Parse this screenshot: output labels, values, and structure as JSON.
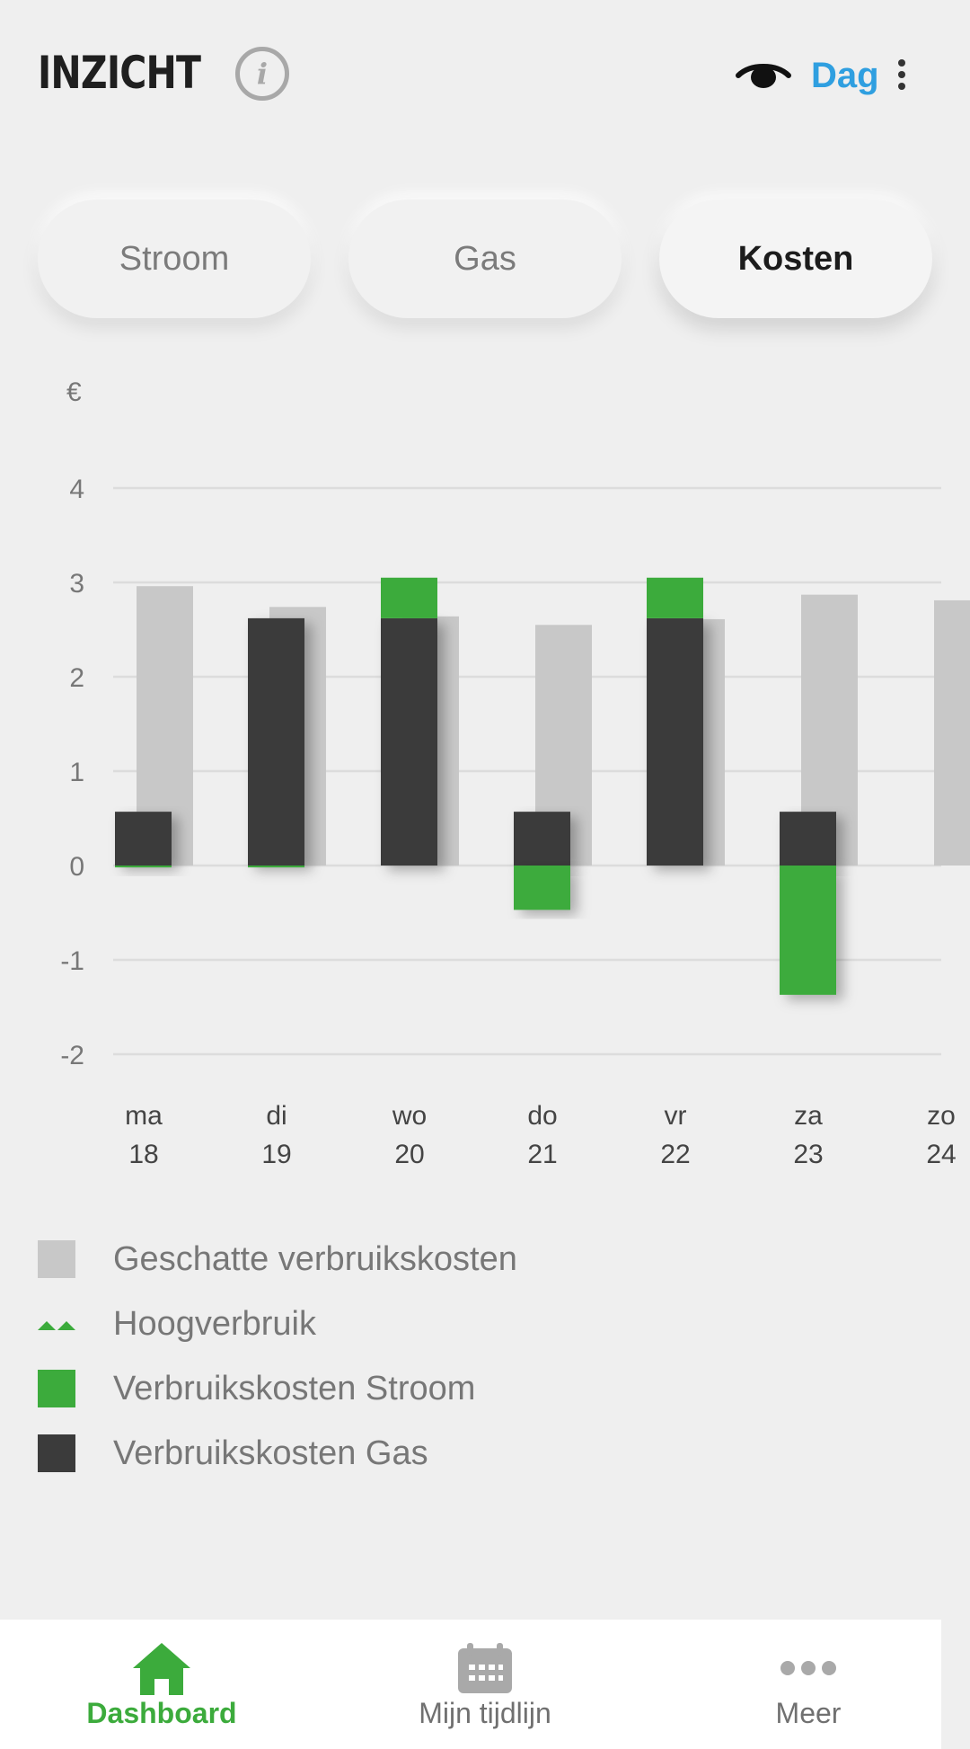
{
  "header": {
    "title": "INZICHT",
    "info_icon": "info-icon",
    "visibility_icon": "eye-icon",
    "period": "Dag",
    "menu_icon": "kebab-menu-icon"
  },
  "tabs": [
    {
      "label": "Stroom",
      "active": false
    },
    {
      "label": "Gas",
      "active": false
    },
    {
      "label": "Kosten",
      "active": true
    }
  ],
  "chart_data": {
    "type": "bar",
    "ylabel": "€",
    "ylim": [
      -2,
      4
    ],
    "yticks": [
      "4",
      "3",
      "2",
      "1",
      "0",
      "-1",
      "-2"
    ],
    "categories": [
      {
        "day": "ma",
        "date": "18"
      },
      {
        "day": "di",
        "date": "19"
      },
      {
        "day": "wo",
        "date": "20"
      },
      {
        "day": "do",
        "date": "21"
      },
      {
        "day": "vr",
        "date": "22"
      },
      {
        "day": "za",
        "date": "23"
      },
      {
        "day": "zo",
        "date": "24"
      }
    ],
    "series": [
      {
        "name": "Geschatte verbruikskosten",
        "values": [
          2.96,
          2.74,
          2.64,
          2.55,
          2.61,
          2.87,
          2.81
        ],
        "color": "#c8c8c8"
      },
      {
        "name": "Verbruikskosten Gas",
        "values": [
          0.57,
          2.62,
          2.62,
          0.57,
          2.62,
          0.57,
          null
        ],
        "color": "#3b3b3b"
      },
      {
        "name": "Verbruikskosten Stroom",
        "values": [
          -0.02,
          -0.02,
          0.43,
          -0.47,
          0.43,
          -1.37,
          null
        ],
        "color": "#3cab3c"
      }
    ],
    "grid": true
  },
  "legend": [
    {
      "label": "Geschatte verbruikskosten",
      "type": "square",
      "color": "#c8c8c8"
    },
    {
      "label": "Hoogverbruik",
      "type": "marker",
      "color": "#3cab3c"
    },
    {
      "label": "Verbruikskosten Stroom",
      "type": "square",
      "color": "#3cab3c"
    },
    {
      "label": "Verbruikskosten Gas",
      "type": "square",
      "color": "#3b3b3b"
    }
  ],
  "bottom_nav": [
    {
      "label": "Dashboard",
      "icon": "home-icon",
      "active": true
    },
    {
      "label": "Mijn tijdlijn",
      "icon": "calendar-icon",
      "active": false
    },
    {
      "label": "Meer",
      "icon": "more-dots-icon",
      "active": false
    }
  ]
}
